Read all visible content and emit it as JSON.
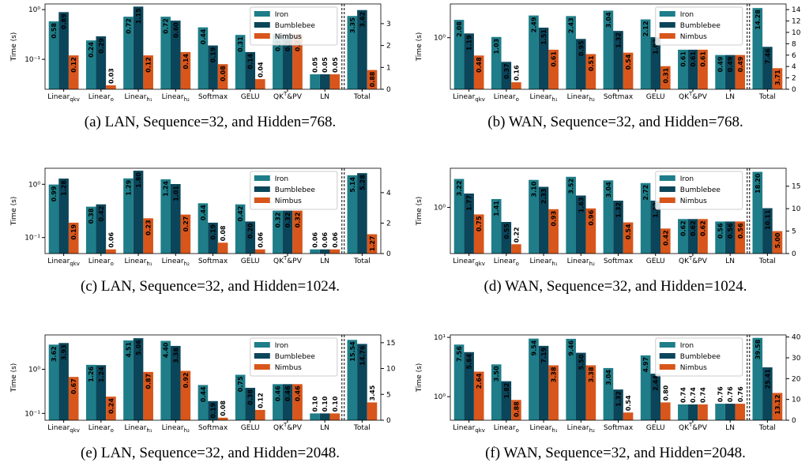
{
  "chart_data": [
    {
      "type": "bar",
      "caption": "(a) LAN, Sequence=32, and Hidden=768.",
      "y_label": "Time (s)",
      "categories": [
        {
          "text": "Linear",
          "sub": "qkv"
        },
        {
          "text": "Linear",
          "sub": "o"
        },
        {
          "text": "Linear",
          "sub": "h₁"
        },
        {
          "text": "Linear",
          "sub": "h₂"
        },
        {
          "text": "Softmax"
        },
        {
          "text": "GELU"
        },
        {
          "text": "QK",
          "sup": "T",
          "tail": "&PV"
        },
        {
          "text": "LN"
        }
      ],
      "series": [
        {
          "name": "Iron",
          "color": "#1e7d88",
          "values": [
            0.58,
            0.24,
            0.72,
            0.72,
            0.44,
            0.31,
            0.32,
            0.05
          ]
        },
        {
          "name": "Bumblebee",
          "color": "#0b4559",
          "values": [
            0.89,
            0.29,
            1.15,
            0.6,
            0.19,
            0.14,
            0.32,
            0.05
          ],
          "value_labels": [
            null,
            null,
            null,
            "0.60",
            null,
            null,
            null,
            null
          ]
        },
        {
          "name": "Nimbus",
          "color": "#d8561b",
          "values": [
            0.12,
            0.03,
            0.12,
            0.14,
            0.08,
            0.04,
            0.32,
            0.05
          ]
        }
      ],
      "total": {
        "category": "Total",
        "values": [
          3.35,
          3.62,
          0.88
        ]
      },
      "log_y": true,
      "ylim": [
        0.025,
        1.3
      ],
      "yticks": [
        {
          "value": 0.1,
          "label": "10⁻¹"
        },
        {
          "value": 1,
          "label": "10⁰"
        }
      ],
      "y2lim": [
        0,
        3.9
      ],
      "y2ticks": [
        0,
        1,
        2,
        3
      ],
      "legend": "upper right"
    },
    {
      "type": "bar",
      "caption": "(b) WAN, Sequence=32, and Hidden=768.",
      "y_label": "Time (s)",
      "categories": [
        {
          "text": "Linear",
          "sub": "qkv"
        },
        {
          "text": "Linear",
          "sub": "o"
        },
        {
          "text": "Linear",
          "sub": "h₁"
        },
        {
          "text": "Linear",
          "sub": "h₂"
        },
        {
          "text": "Softmax"
        },
        {
          "text": "GELU"
        },
        {
          "text": "QK",
          "sup": "T",
          "tail": "&PV"
        },
        {
          "text": "LN"
        }
      ],
      "series": [
        {
          "name": "Iron",
          "color": "#1e7d88",
          "values": [
            2.08,
            1.03,
            2.49,
            2.43,
            3.04,
            2.12,
            0.61,
            0.49
          ]
        },
        {
          "name": "Bumblebee",
          "color": "#0b4559",
          "values": [
            1.19,
            0.37,
            1.51,
            0.95,
            1.32,
            1.02,
            0.61,
            0.49
          ]
        },
        {
          "name": "Nimbus",
          "color": "#d8561b",
          "values": [
            0.48,
            0.16,
            0.61,
            0.51,
            0.54,
            0.31,
            0.61,
            0.49
          ]
        }
      ],
      "total": {
        "category": "Total",
        "values": [
          14.28,
          7.46,
          3.71
        ]
      },
      "log_y": true,
      "ylim": [
        0.12,
        4
      ],
      "yticks": [
        {
          "value": 1,
          "label": "10⁰"
        }
      ],
      "y2lim": [
        0,
        15
      ],
      "y2ticks": [
        0,
        2,
        4,
        6,
        8,
        10,
        12,
        14
      ],
      "legend": "upper right"
    },
    {
      "type": "bar",
      "caption": "(c) LAN, Sequence=32, and Hidden=1024.",
      "y_label": "Time (s)",
      "categories": [
        {
          "text": "Linear",
          "sub": "qkv"
        },
        {
          "text": "Linear",
          "sub": "o"
        },
        {
          "text": "Linear",
          "sub": "h₁"
        },
        {
          "text": "Linear",
          "sub": "h₂"
        },
        {
          "text": "Softmax"
        },
        {
          "text": "GELU"
        },
        {
          "text": "QK",
          "sup": "T",
          "tail": "&PV"
        },
        {
          "text": "LN"
        }
      ],
      "series": [
        {
          "name": "Iron",
          "color": "#1e7d88",
          "values": [
            0.99,
            0.38,
            1.29,
            1.24,
            0.44,
            0.42,
            0.32,
            0.06
          ]
        },
        {
          "name": "Bumblebee",
          "color": "#0b4559",
          "values": [
            1.28,
            0.42,
            1.8,
            1.01,
            0.19,
            0.2,
            0.32,
            0.06
          ],
          "value_labels": [
            null,
            null,
            "1.80",
            null,
            null,
            "0.20",
            null,
            null
          ]
        },
        {
          "name": "Nimbus",
          "color": "#d8561b",
          "values": [
            0.19,
            0.06,
            0.23,
            0.27,
            0.08,
            0.06,
            0.32,
            0.06
          ]
        }
      ],
      "total": {
        "category": "Total",
        "values": [
          5.14,
          5.28,
          1.27
        ]
      },
      "log_y": true,
      "ylim": [
        0.05,
        2
      ],
      "yticks": [
        {
          "value": 0.1,
          "label": "10⁻¹"
        },
        {
          "value": 1,
          "label": "10⁰"
        }
      ],
      "y2lim": [
        0,
        5.6
      ],
      "y2ticks": [
        0,
        2,
        4
      ],
      "legend": "upper right"
    },
    {
      "type": "bar",
      "caption": "(d) WAN, Sequence=32, and Hidden=1024.",
      "y_label": "Time (s)",
      "categories": [
        {
          "text": "Linear",
          "sub": "qkv"
        },
        {
          "text": "Linear",
          "sub": "o"
        },
        {
          "text": "Linear",
          "sub": "h₁"
        },
        {
          "text": "Linear",
          "sub": "h₂"
        },
        {
          "text": "Softmax"
        },
        {
          "text": "GELU"
        },
        {
          "text": "QK",
          "sup": "T",
          "tail": "&PV"
        },
        {
          "text": "LN"
        }
      ],
      "series": [
        {
          "name": "Iron",
          "color": "#1e7d88",
          "values": [
            3.22,
            1.41,
            3.1,
            3.52,
            3.04,
            2.72,
            0.62,
            0.56
          ],
          "value_labels": [
            null,
            null,
            "3.10",
            null,
            null,
            null,
            null,
            null
          ]
        },
        {
          "name": "Bumblebee",
          "color": "#0b4559",
          "values": [
            1.77,
            0.55,
            2.33,
            1.63,
            1.32,
            1.32,
            0.62,
            0.56
          ]
        },
        {
          "name": "Nimbus",
          "color": "#d8561b",
          "values": [
            0.75,
            0.22,
            0.93,
            0.96,
            0.54,
            0.42,
            0.62,
            0.56
          ]
        }
      ],
      "total": {
        "category": "Total",
        "values": [
          18.2,
          10.11,
          5
        ],
        "value_labels": [
          "18.20",
          null,
          "5.00"
        ]
      },
      "log_y": true,
      "ylim": [
        0.15,
        5
      ],
      "yticks": [
        {
          "value": 1,
          "label": "10⁰"
        }
      ],
      "y2lim": [
        0,
        19
      ],
      "y2ticks": [
        0,
        5,
        10,
        15
      ],
      "legend": "upper right"
    },
    {
      "type": "bar",
      "caption": "(e) LAN, Sequence=32, and Hidden=2048.",
      "y_label": "Time (s)",
      "categories": [
        {
          "text": "Linear",
          "sub": "qkv"
        },
        {
          "text": "Linear",
          "sub": "o"
        },
        {
          "text": "Linear",
          "sub": "h₁"
        },
        {
          "text": "Linear",
          "sub": "h₂"
        },
        {
          "text": "Softmax"
        },
        {
          "text": "GELU"
        },
        {
          "text": "QK",
          "sup": "T",
          "tail": "&PV"
        },
        {
          "text": "LN"
        }
      ],
      "series": [
        {
          "name": "Iron",
          "color": "#1e7d88",
          "values": [
            3.62,
            1.26,
            4.51,
            4.4,
            0.44,
            0.75,
            0.46,
            0.1
          ],
          "value_labels": [
            null,
            null,
            null,
            "4.40",
            null,
            null,
            null,
            "0.10"
          ]
        },
        {
          "name": "Bumblebee",
          "color": "#0b4559",
          "values": [
            3.93,
            1.24,
            5.06,
            3.38,
            0.19,
            0.38,
            0.46,
            0.1
          ],
          "value_labels": [
            null,
            null,
            null,
            null,
            null,
            null,
            null,
            "0.10"
          ]
        },
        {
          "name": "Nimbus",
          "color": "#d8561b",
          "values": [
            0.67,
            0.24,
            0.87,
            0.92,
            0.08,
            0.12,
            0.46,
            0.1
          ],
          "value_labels": [
            null,
            null,
            null,
            null,
            null,
            null,
            null,
            "0.10"
          ]
        }
      ],
      "total": {
        "category": "Total",
        "values": [
          15.54,
          14.76,
          3.45
        ]
      },
      "log_y": true,
      "ylim": [
        0.07,
        6
      ],
      "yticks": [
        {
          "value": 0.1,
          "label": "10⁻¹"
        },
        {
          "value": 1,
          "label": "10⁰"
        }
      ],
      "y2lim": [
        0,
        16.5
      ],
      "y2ticks": [
        0,
        5,
        10,
        15
      ],
      "legend": "upper right"
    },
    {
      "type": "bar",
      "caption": "(f) WAN, Sequence=32, and Hidden=2048.",
      "y_label": "Time (s)",
      "categories": [
        {
          "text": "Linear",
          "sub": "qkv"
        },
        {
          "text": "Linear",
          "sub": "o"
        },
        {
          "text": "Linear",
          "sub": "h₁"
        },
        {
          "text": "Linear",
          "sub": "h₂"
        },
        {
          "text": "Softmax"
        },
        {
          "text": "GELU"
        },
        {
          "text": "QK",
          "sup": "T",
          "tail": "&PV"
        },
        {
          "text": "LN"
        }
      ],
      "series": [
        {
          "name": "Iron",
          "color": "#1e7d88",
          "values": [
            7.56,
            3.5,
            9.54,
            9.46,
            3.04,
            4.97,
            0.74,
            0.76
          ],
          "value_labels": [
            null,
            "3.50",
            null,
            null,
            null,
            null,
            null,
            null
          ]
        },
        {
          "name": "Bumblebee",
          "color": "#0b4559",
          "values": [
            5.64,
            1.82,
            7.19,
            5.5,
            1.32,
            2.44,
            0.74,
            0.76
          ],
          "value_labels": [
            null,
            null,
            null,
            "5.50",
            null,
            null,
            null,
            null
          ]
        },
        {
          "name": "Nimbus",
          "color": "#d8561b",
          "values": [
            2.64,
            0.88,
            3.38,
            3.38,
            0.54,
            0.8,
            0.74,
            0.76
          ],
          "value_labels": [
            null,
            null,
            null,
            null,
            null,
            "0.80",
            null,
            null
          ]
        }
      ],
      "total": {
        "category": "Total",
        "values": [
          39.58,
          25.41,
          13.12
        ]
      },
      "log_y": true,
      "ylim": [
        0.4,
        11
      ],
      "yticks": [
        {
          "value": 1,
          "label": "10⁰"
        },
        {
          "value": 10,
          "label": "10¹"
        }
      ],
      "y2lim": [
        0,
        41
      ],
      "y2ticks": [
        0,
        10,
        20,
        30,
        40
      ],
      "legend": "upper right"
    }
  ]
}
